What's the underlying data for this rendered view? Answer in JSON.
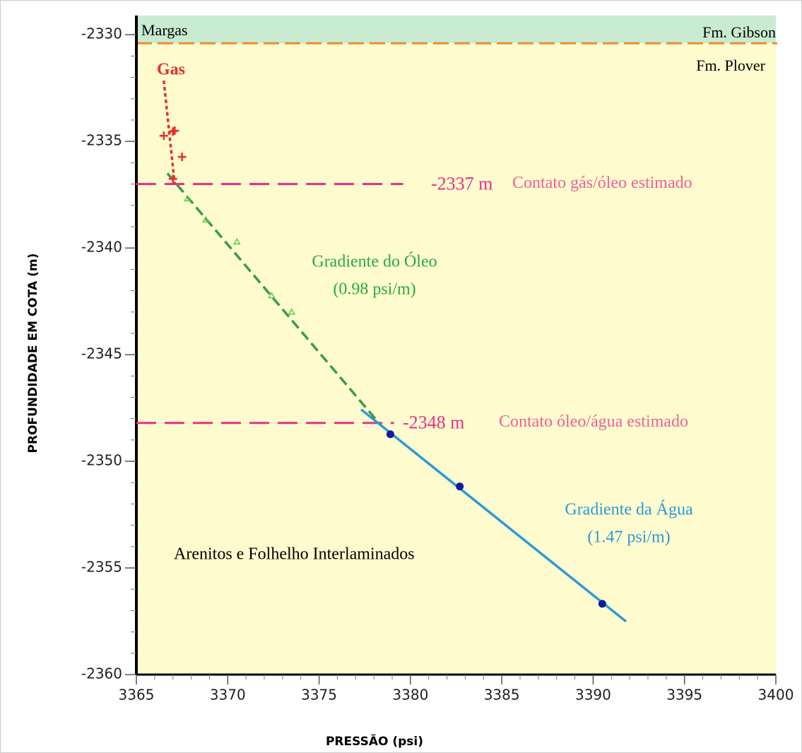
{
  "chart_data": {
    "type": "scatter",
    "xlabel": "PRESSÃO (psi)",
    "ylabel": "PROFUNDIDADE EM COTA (m)",
    "xlim": [
      3365,
      3400
    ],
    "ylim": [
      -2360,
      -2329.1
    ],
    "xticks": [
      3365,
      3370,
      3375,
      3380,
      3385,
      3390,
      3395,
      3400
    ],
    "yticks": [
      -2330,
      -2335,
      -2340,
      -2345,
      -2350,
      -2355,
      -2360
    ],
    "xminorticks": [
      3366,
      3367,
      3368,
      3369,
      3371,
      3372,
      3373,
      3374,
      3376,
      3377,
      3378,
      3379,
      3381,
      3382,
      3383,
      3384,
      3386,
      3387,
      3388,
      3389,
      3391,
      3392,
      3393,
      3394,
      3396,
      3397,
      3398,
      3399
    ],
    "yminorticks": [
      -2331,
      -2332,
      -2333,
      -2334,
      -2336,
      -2337,
      -2338,
      -2339,
      -2341,
      -2342,
      -2343,
      -2344,
      -2346,
      -2347,
      -2348,
      -2349,
      -2351,
      -2352,
      -2353,
      -2354,
      -2356,
      -2357,
      -2358,
      -2359
    ],
    "zones": [
      {
        "labels": [
          "Margas",
          "Fm. Gibson"
        ],
        "ylim": [
          -2330.4,
          -2329.1
        ],
        "color": "#c8ebd2"
      },
      {
        "labels": [
          "Fm. Plover",
          "Arenitos e Folhelho Interlaminados"
        ],
        "ylim": [
          -2360,
          -2330.4
        ],
        "color": "#fefcce"
      }
    ],
    "boundary": {
      "value": -2330.4,
      "color": "#f08c2c"
    },
    "series": [
      {
        "name": "Gas",
        "marker": "plus",
        "color": "#e8302c",
        "x": [
          3366.5,
          3367.0,
          3367.1,
          3367.5,
          3367.0
        ],
        "values": [
          -2334.74,
          -2334.54,
          -2334.5,
          -2335.73,
          -2336.76
        ]
      },
      {
        "marker": "triangle",
        "color": "#5cc850",
        "x": [
          3367.8,
          3368.8,
          3370.5,
          3372.4,
          3373.5
        ],
        "values": [
          -2337.69,
          -2338.68,
          -2339.71,
          -2342.23,
          -2343.0
        ]
      },
      {
        "marker": "circle",
        "color": "#101c9c",
        "x": [
          3378.9,
          3382.7,
          3390.5
        ],
        "values": [
          -2348.73,
          -2351.18,
          -2356.68
        ]
      }
    ],
    "lines": [
      {
        "style": "dotted",
        "color": "#e8302c",
        "x": [
          3366.5,
          3367.1
        ],
        "values": [
          -2332.15,
          -2337.03
        ]
      },
      {
        "style": "dashed",
        "color": "#3c9a4a",
        "x": [
          3366.7,
          3378.3
        ],
        "values": [
          -2336.5,
          -2348.23
        ]
      },
      {
        "style": "solid",
        "color": "#2b9ad8",
        "x": [
          3377.3,
          3391.8
        ],
        "values": [
          -2347.57,
          -2357.51
        ]
      }
    ],
    "contacts": [
      {
        "value": -2337,
        "label": "-2337 m",
        "text": "Contato gás/óleo estimado",
        "xlim": [
          3365,
          3379.6
        ]
      },
      {
        "value": -2348.2,
        "label": "-2348 m",
        "text": "Contato óleo/água estimado",
        "xlim": [
          3365,
          3379.1
        ]
      }
    ],
    "annotations": [
      {
        "lines": [
          "Gradiente do Óleo",
          "(0.98 psi/m)"
        ],
        "color": "#2aa840"
      },
      {
        "lines": [
          "Gradiente da Água",
          "(1.47 psi/m)"
        ],
        "color": "#2b9ad8"
      }
    ]
  }
}
